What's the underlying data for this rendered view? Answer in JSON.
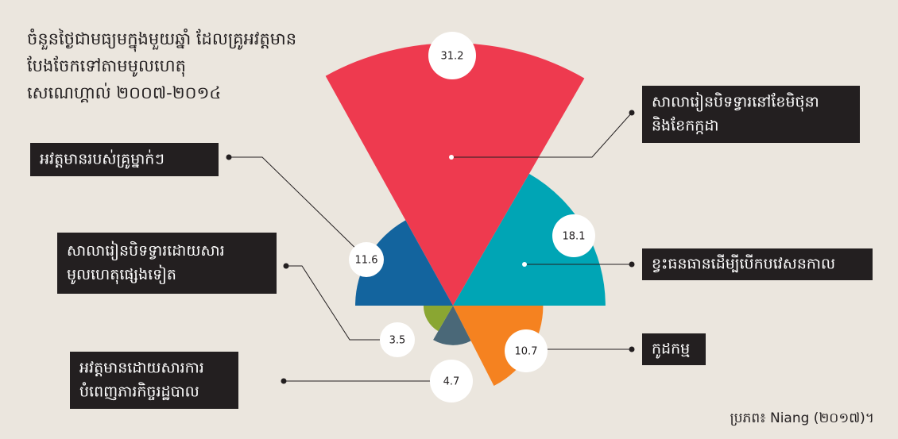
{
  "chart_data": {
    "type": "polar_area",
    "title": [
      "ចំនួនថ្ងៃជាមធ្យមក្នុងមួយឆ្នាំ ដែលគ្រូអវត្តមាន",
      "បែងចែកទៅតាមមូលហេតុ",
      "សេណេហ្គាល់ ២០០៧-២០១៤"
    ],
    "categories": [
      [
        "សាលារៀនបិទទ្វារនៅខែមិថុនា",
        "និងខែកក្កដា"
      ],
      [
        "ខ្វះធនធានដើម្បីបើកបវេសនកាល"
      ],
      [
        "កូដកម្ម"
      ],
      [
        "អវត្តមានដោយសារការ",
        "បំពេញភារកិច្ចរដ្ឋបាល"
      ],
      [
        "សាលារៀនបិទទ្វារដោយសារ",
        "មូលហេតុផ្សេងទៀត"
      ],
      [
        "អវត្តមានរបស់គ្រូម្នាក់ៗ"
      ]
    ],
    "values": [
      31.2,
      18.1,
      10.7,
      4.7,
      3.5,
      11.6
    ],
    "colors": [
      "#ee3a4f",
      "#00a5b5",
      "#f58220",
      "#4a6878",
      "#8aa632",
      "#13649e"
    ],
    "source": "ប្រភព៖ Niang (២០១៧)។"
  }
}
